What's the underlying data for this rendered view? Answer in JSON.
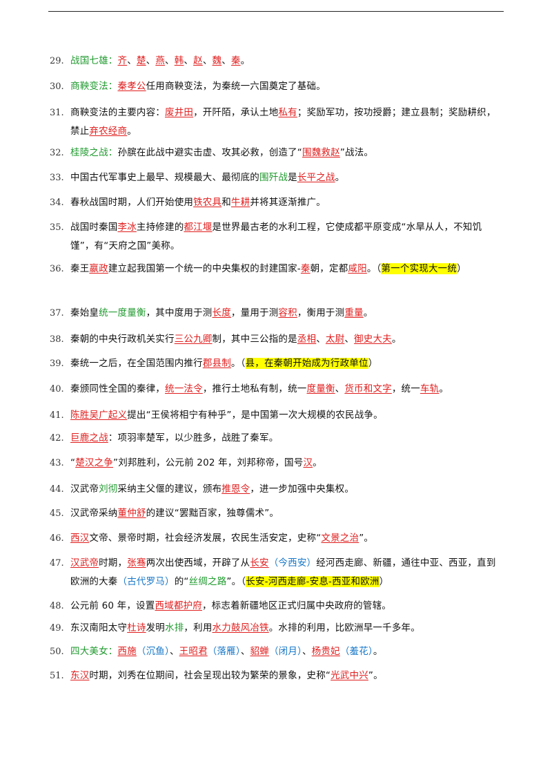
{
  "items": [
    {
      "num": "29.",
      "segs": [
        {
          "t": "战国七雄：",
          "c": "g"
        },
        {
          "t": "齐",
          "c": "r"
        },
        {
          "t": "、"
        },
        {
          "t": "楚",
          "c": "r"
        },
        {
          "t": "、"
        },
        {
          "t": "燕",
          "c": "r"
        },
        {
          "t": "、"
        },
        {
          "t": "韩",
          "c": "r"
        },
        {
          "t": "、"
        },
        {
          "t": "赵",
          "c": "r"
        },
        {
          "t": "、"
        },
        {
          "t": "魏",
          "c": "r"
        },
        {
          "t": "、"
        },
        {
          "t": "秦",
          "c": "r"
        },
        {
          "t": "。"
        }
      ]
    },
    {
      "num": "30.",
      "segs": [
        {
          "t": "商鞅变法：",
          "c": "g"
        },
        {
          "t": "秦孝公",
          "c": "r"
        },
        {
          "t": "任用商鞅变法，为秦统一六国奠定了基础。"
        }
      ]
    },
    {
      "num": "31.",
      "segs": [
        {
          "t": "商鞅变法的主要内容："
        },
        {
          "t": "废井田",
          "c": "r"
        },
        {
          "t": "，开阡陌，承认土地"
        },
        {
          "t": "私有",
          "c": "r"
        },
        {
          "t": "；奖励军功，按功授爵；建立县制；奖励耕织，禁止"
        },
        {
          "t": "弃农经商",
          "c": "r"
        },
        {
          "t": "。"
        }
      ]
    },
    {
      "num": "32.",
      "segs": [
        {
          "t": "桂陵之战：",
          "c": "g"
        },
        {
          "t": "孙膑在此战中避实击虚、攻其必救，创造了“"
        },
        {
          "t": "围魏救赵",
          "c": "r"
        },
        {
          "t": "”战法。"
        }
      ]
    },
    {
      "num": "33.",
      "segs": [
        {
          "t": "中国古代军事史上最早、规模最大、最彻底的"
        },
        {
          "t": "围歼战",
          "c": "g"
        },
        {
          "t": "是"
        },
        {
          "t": "长平之战",
          "c": "r"
        },
        {
          "t": "。"
        }
      ]
    },
    {
      "num": "34.",
      "segs": [
        {
          "t": "春秋战国时期，人们开始使用"
        },
        {
          "t": "铁农具",
          "c": "r"
        },
        {
          "t": "和"
        },
        {
          "t": "牛耕",
          "c": "r"
        },
        {
          "t": "并将其逐渐推广。"
        }
      ]
    },
    {
      "num": "35.",
      "segs": [
        {
          "t": "战国时秦国"
        },
        {
          "t": "李冰",
          "c": "r"
        },
        {
          "t": "主持修建的"
        },
        {
          "t": "都江堰",
          "c": "r"
        },
        {
          "t": "是世界最古老的水利工程，它使成都平原变成“水旱从人，不知饥馑”，有“天府之国”美称。"
        }
      ]
    },
    {
      "num": "36.",
      "segs": [
        {
          "t": "秦王"
        },
        {
          "t": "嬴政",
          "c": "r"
        },
        {
          "t": "建立起我国第一个统一的中央集权的封建国家-"
        },
        {
          "t": "秦",
          "c": "r"
        },
        {
          "t": "朝，定都"
        },
        {
          "t": "咸阳",
          "c": "r"
        },
        {
          "t": "。（"
        },
        {
          "t": "第一个实现大一统",
          "c": "hl"
        },
        {
          "t": "）"
        }
      ]
    },
    {
      "num": "37.",
      "segs": [
        {
          "t": "秦始皇"
        },
        {
          "t": "统一度量衡",
          "c": "g"
        },
        {
          "t": "，其中度用于测"
        },
        {
          "t": "长度",
          "c": "r"
        },
        {
          "t": "，量用于测"
        },
        {
          "t": "容积",
          "c": "r"
        },
        {
          "t": "，衡用于测"
        },
        {
          "t": "重量",
          "c": "r"
        },
        {
          "t": "。"
        }
      ]
    },
    {
      "num": "38.",
      "segs": [
        {
          "t": "秦朝的中央行政机关实行"
        },
        {
          "t": "三公九卿",
          "c": "r"
        },
        {
          "t": "制，其中三公指的是"
        },
        {
          "t": "丞相",
          "c": "r"
        },
        {
          "t": "、"
        },
        {
          "t": "太尉",
          "c": "r"
        },
        {
          "t": "、"
        },
        {
          "t": "御史大夫",
          "c": "r"
        },
        {
          "t": "。"
        }
      ]
    },
    {
      "num": "39.",
      "segs": [
        {
          "t": "秦统一之后，在全国范围内推行"
        },
        {
          "t": "郡县制",
          "c": "r"
        },
        {
          "t": "。（"
        },
        {
          "t": "县，在秦朝开始成为行政单位",
          "c": "hl"
        },
        {
          "t": "）"
        }
      ]
    },
    {
      "num": "40.",
      "segs": [
        {
          "t": "秦颁同性全国的秦律，"
        },
        {
          "t": "统一法令",
          "c": "r"
        },
        {
          "t": "，推行土地私有制，统一"
        },
        {
          "t": "度量衡",
          "c": "r"
        },
        {
          "t": "、"
        },
        {
          "t": "货币和文字",
          "c": "r"
        },
        {
          "t": "，统一"
        },
        {
          "t": "车轨",
          "c": "r"
        },
        {
          "t": "。"
        }
      ]
    },
    {
      "num": "41.",
      "segs": [
        {
          "t": "陈胜吴广起义",
          "c": "r"
        },
        {
          "t": "提出“王侯将相宁有种乎”，是中国第一次大规模的农民战争。"
        }
      ]
    },
    {
      "num": "42.",
      "segs": [
        {
          "t": "巨鹿之战",
          "c": "r"
        },
        {
          "t": "：项羽率楚军，以少胜多，战胜了秦军。"
        }
      ]
    },
    {
      "num": "43.",
      "segs": [
        {
          "t": "“"
        },
        {
          "t": "楚汉之争",
          "c": "r"
        },
        {
          "t": "”刘邦胜利，公元前 202 年，刘邦称帝，国号"
        },
        {
          "t": "汉",
          "c": "r"
        },
        {
          "t": "。"
        }
      ]
    },
    {
      "num": "44.",
      "segs": [
        {
          "t": "汉武帝"
        },
        {
          "t": "刘彻",
          "c": "g"
        },
        {
          "t": "采纳主父偃的建议，颁布"
        },
        {
          "t": "推恩令",
          "c": "r"
        },
        {
          "t": "，进一步加强中央集权。"
        }
      ]
    },
    {
      "num": "45.",
      "segs": [
        {
          "t": "汉武帝采纳"
        },
        {
          "t": "董仲舒",
          "c": "r"
        },
        {
          "t": "的建议“罢黜百家，独尊儒术”。"
        }
      ]
    },
    {
      "num": "46.",
      "segs": [
        {
          "t": "西汉",
          "c": "r"
        },
        {
          "t": "文帝、景帝时期，社会经济发展，农民生活安定，史称“"
        },
        {
          "t": "文景之治",
          "c": "r"
        },
        {
          "t": "”。"
        }
      ]
    },
    {
      "num": "47.",
      "segs": [
        {
          "t": "汉武帝",
          "c": "r"
        },
        {
          "t": "时期，"
        },
        {
          "t": "张骞",
          "c": "r"
        },
        {
          "t": "两次出使西域，开辟了从"
        },
        {
          "t": "长安",
          "c": "r"
        },
        {
          "t": "（今西安）",
          "c": "b"
        },
        {
          "t": "经河西走廊、新疆，通往中亚、西亚，直到欧洲的大秦"
        },
        {
          "t": "（古代罗马）",
          "c": "b"
        },
        {
          "t": "的“"
        },
        {
          "t": "丝绸之路",
          "c": "g"
        },
        {
          "t": "”。（"
        },
        {
          "t": "长安-河西走廊-安息-西亚和欧洲",
          "c": "hl"
        },
        {
          "t": "）"
        }
      ]
    },
    {
      "num": "48.",
      "segs": [
        {
          "t": "公元前 60 年，设置"
        },
        {
          "t": "西域都护府",
          "c": "r"
        },
        {
          "t": "，标志着新疆地区正式归属中央政府的管辖。"
        }
      ]
    },
    {
      "num": "49.",
      "segs": [
        {
          "t": "东汉南阳太守"
        },
        {
          "t": "杜诗",
          "c": "r"
        },
        {
          "t": "发明"
        },
        {
          "t": "水排",
          "c": "g"
        },
        {
          "t": "，利用"
        },
        {
          "t": "水力鼓风冶铁",
          "c": "r"
        },
        {
          "t": "。水排的利用，比欧洲早一千多年。"
        }
      ]
    },
    {
      "num": "50.",
      "segs": [
        {
          "t": "四大美女：",
          "c": "g"
        },
        {
          "t": "西施",
          "c": "r"
        },
        {
          "t": "（沉鱼）",
          "c": "b"
        },
        {
          "t": "、"
        },
        {
          "t": "王昭君",
          "c": "r"
        },
        {
          "t": "（落雁）",
          "c": "b"
        },
        {
          "t": "、"
        },
        {
          "t": "貂蝉",
          "c": "r"
        },
        {
          "t": "（闭月）",
          "c": "b"
        },
        {
          "t": "、"
        },
        {
          "t": "杨贵妃",
          "c": "r"
        },
        {
          "t": "（羞花）",
          "c": "b"
        },
        {
          "t": "。"
        }
      ]
    },
    {
      "num": "51.",
      "segs": [
        {
          "t": "东汉",
          "c": "r"
        },
        {
          "t": "时期，刘秀在位期间，社会呈现出较为繁荣的景象，史称“"
        },
        {
          "t": "光武中兴",
          "c": "r"
        },
        {
          "t": "”。"
        }
      ]
    }
  ]
}
